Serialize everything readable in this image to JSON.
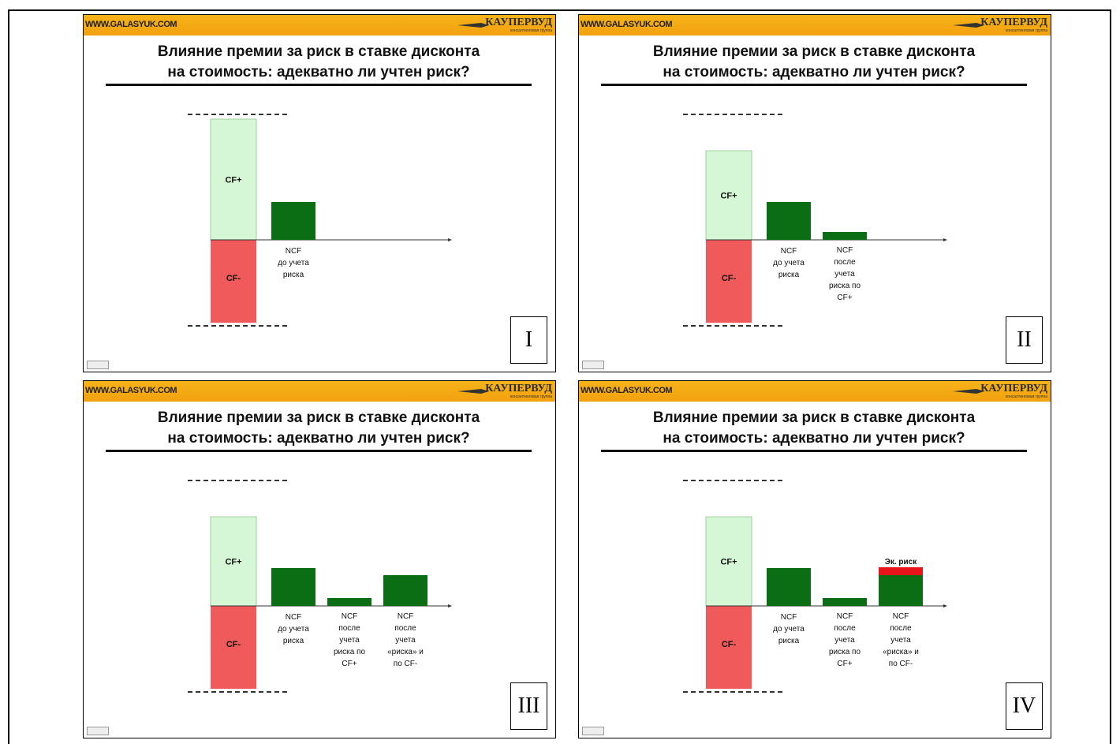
{
  "site": "WWW.GALASYUK.COM",
  "logo": {
    "name": "КАУПЕРВУД",
    "subtitle": "консалтинговая группа"
  },
  "title_line1": "Влияние премии за риск в ставке дисконта",
  "title_line2": "на стоимость: адекватно ли учтен риск?",
  "colors": {
    "cf_plus": "#d6f7d6",
    "cf_minus": "#f05a5a",
    "ncf": "#0b6e14",
    "risk": "#e8131b",
    "header": "#f4aa12"
  },
  "labels": {
    "cf_plus": "CF+",
    "cf_minus": "CF-",
    "ncf_before": [
      "NCF",
      "до учета",
      "риска"
    ],
    "ncf_after_cfplus": [
      "NCF",
      "после",
      "учета",
      "риска по",
      "CF+"
    ],
    "ncf_after_both": [
      "NCF",
      "после",
      "учета",
      "«риска» и",
      "по CF-"
    ],
    "econ_risk": "Эк. риск"
  },
  "slides": [
    {
      "number": "I",
      "bars": [
        "before"
      ]
    },
    {
      "number": "II",
      "bars": [
        "before",
        "after_cfplus"
      ]
    },
    {
      "number": "III",
      "bars": [
        "before",
        "after_cfplus",
        "after_both"
      ]
    },
    {
      "number": "IV",
      "bars": [
        "before",
        "after_cfplus",
        "after_both_risk"
      ]
    }
  ]
}
